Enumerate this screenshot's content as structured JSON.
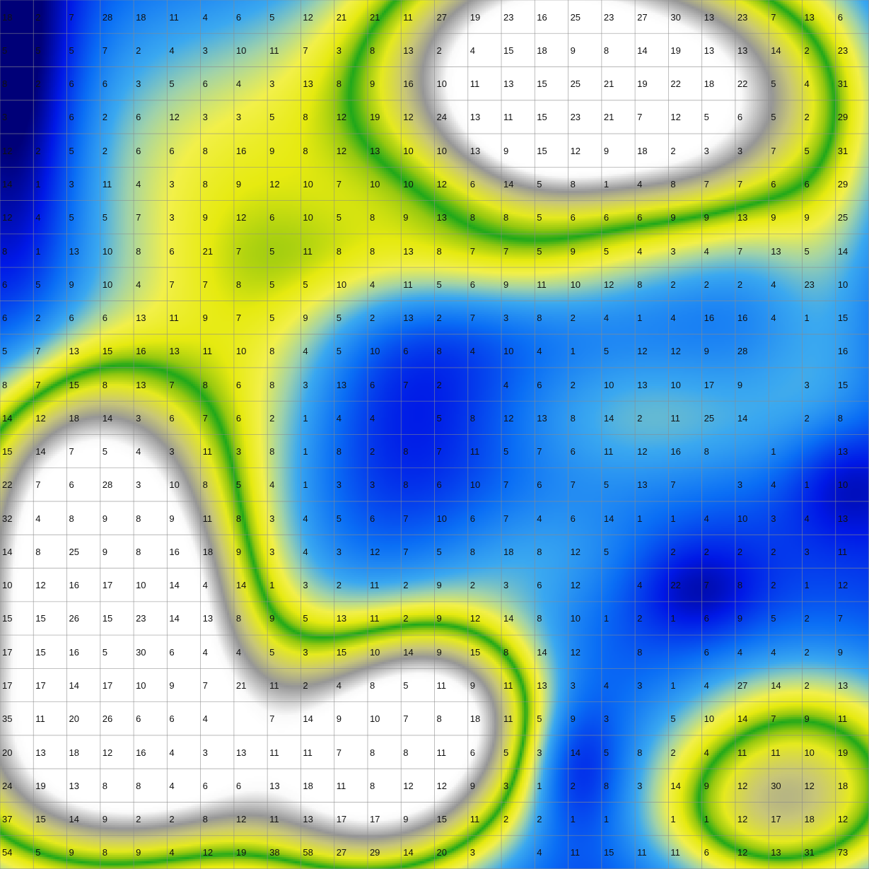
{
  "grid": {
    "rows": 26,
    "cols": 26,
    "values": [
      [
        "18",
        "2",
        "7",
        "28",
        "18",
        "11",
        "4",
        "6",
        "5",
        "12",
        "21",
        "21",
        "11",
        "27",
        "19",
        "23",
        "16",
        "25",
        "23",
        "27",
        "30",
        "13",
        "23",
        "7",
        "13",
        "6"
      ],
      [
        "5",
        "5",
        "5",
        "7",
        "2",
        "4",
        "3",
        "10",
        "11",
        "7",
        "3",
        "8",
        "13",
        "2",
        "4",
        "15",
        "18",
        "9",
        "8",
        "14",
        "19",
        "13",
        "13",
        "14",
        "2",
        "23"
      ],
      [
        "8",
        "2",
        "6",
        "6",
        "3",
        "5",
        "6",
        "4",
        "3",
        "13",
        "8",
        "9",
        "16",
        "10",
        "11",
        "13",
        "15",
        "25",
        "21",
        "19",
        "22",
        "18",
        "22",
        "5",
        "4",
        "31"
      ],
      [
        "3",
        "",
        "6",
        "2",
        "6",
        "12",
        "3",
        "3",
        "5",
        "8",
        "12",
        "19",
        "12",
        "24",
        "13",
        "11",
        "15",
        "23",
        "21",
        "7",
        "12",
        "5",
        "6",
        "5",
        "2",
        "29"
      ],
      [
        "12",
        "2",
        "5",
        "2",
        "6",
        "6",
        "8",
        "16",
        "9",
        "8",
        "12",
        "13",
        "10",
        "10",
        "13",
        "9",
        "15",
        "12",
        "9",
        "18",
        "2",
        "3",
        "3",
        "7",
        "5",
        "31"
      ],
      [
        "14",
        "1",
        "3",
        "11",
        "4",
        "3",
        "8",
        "9",
        "12",
        "10",
        "7",
        "10",
        "10",
        "12",
        "6",
        "14",
        "5",
        "8",
        "1",
        "4",
        "8",
        "7",
        "7",
        "6",
        "6",
        "29"
      ],
      [
        "12",
        "4",
        "5",
        "5",
        "7",
        "3",
        "9",
        "12",
        "6",
        "10",
        "5",
        "8",
        "9",
        "13",
        "8",
        "8",
        "5",
        "6",
        "6",
        "6",
        "9",
        "9",
        "13",
        "9",
        "9",
        "25"
      ],
      [
        "8",
        "1",
        "13",
        "10",
        "8",
        "6",
        "21",
        "7",
        "5",
        "11",
        "8",
        "8",
        "13",
        "8",
        "7",
        "7",
        "5",
        "9",
        "5",
        "4",
        "3",
        "4",
        "7",
        "13",
        "5",
        "14"
      ],
      [
        "6",
        "5",
        "9",
        "10",
        "4",
        "7",
        "7",
        "8",
        "5",
        "5",
        "10",
        "4",
        "11",
        "5",
        "6",
        "9",
        "11",
        "10",
        "12",
        "8",
        "2",
        "2",
        "2",
        "4",
        "23",
        "10"
      ],
      [
        "6",
        "2",
        "6",
        "6",
        "13",
        "11",
        "9",
        "7",
        "5",
        "9",
        "5",
        "2",
        "13",
        "2",
        "7",
        "3",
        "8",
        "2",
        "4",
        "1",
        "4",
        "16",
        "16",
        "4",
        "1",
        "15"
      ],
      [
        "5",
        "7",
        "13",
        "15",
        "16",
        "13",
        "11",
        "10",
        "8",
        "4",
        "5",
        "10",
        "6",
        "8",
        "4",
        "10",
        "4",
        "1",
        "5",
        "12",
        "12",
        "9",
        "28",
        "",
        "",
        "16"
      ],
      [
        "8",
        "7",
        "15",
        "8",
        "13",
        "7",
        "8",
        "6",
        "8",
        "3",
        "13",
        "6",
        "7",
        "2",
        "",
        "4",
        "6",
        "2",
        "10",
        "13",
        "10",
        "17",
        "9",
        "",
        "3",
        "15"
      ],
      [
        "14",
        "12",
        "18",
        "14",
        "3",
        "6",
        "7",
        "6",
        "2",
        "1",
        "4",
        "4",
        "",
        "5",
        "8",
        "12",
        "13",
        "8",
        "14",
        "2",
        "11",
        "25",
        "14",
        "",
        "2",
        "8"
      ],
      [
        "15",
        "14",
        "7",
        "5",
        "4",
        "3",
        "11",
        "3",
        "8",
        "1",
        "8",
        "2",
        "8",
        "7",
        "11",
        "5",
        "7",
        "6",
        "11",
        "12",
        "16",
        "8",
        "",
        "1",
        "",
        "13"
      ],
      [
        "22",
        "7",
        "6",
        "28",
        "3",
        "10",
        "8",
        "5",
        "4",
        "1",
        "3",
        "3",
        "8",
        "6",
        "10",
        "7",
        "6",
        "7",
        "5",
        "13",
        "7",
        "",
        "3",
        "4",
        "1",
        "10"
      ],
      [
        "32",
        "4",
        "8",
        "9",
        "8",
        "9",
        "11",
        "8",
        "3",
        "4",
        "5",
        "6",
        "7",
        "10",
        "6",
        "7",
        "4",
        "6",
        "14",
        "1",
        "1",
        "4",
        "10",
        "3",
        "4",
        "13"
      ],
      [
        "14",
        "8",
        "25",
        "9",
        "8",
        "16",
        "18",
        "9",
        "3",
        "4",
        "3",
        "12",
        "7",
        "5",
        "8",
        "18",
        "8",
        "12",
        "5",
        "",
        "2",
        "2",
        "2",
        "2",
        "3",
        "11"
      ],
      [
        "10",
        "12",
        "16",
        "17",
        "10",
        "14",
        "4",
        "14",
        "1",
        "3",
        "2",
        "11",
        "2",
        "9",
        "2",
        "3",
        "6",
        "12",
        "",
        "4",
        "22",
        "7",
        "8",
        "2",
        "1",
        "12"
      ],
      [
        "15",
        "15",
        "26",
        "15",
        "23",
        "14",
        "13",
        "8",
        "9",
        "5",
        "13",
        "11",
        "2",
        "9",
        "12",
        "14",
        "8",
        "10",
        "1",
        "2",
        "1",
        "6",
        "9",
        "5",
        "2",
        "7"
      ],
      [
        "17",
        "15",
        "16",
        "5",
        "30",
        "6",
        "4",
        "4",
        "5",
        "3",
        "15",
        "10",
        "14",
        "9",
        "15",
        "8",
        "14",
        "12",
        "",
        "8",
        "",
        "6",
        "4",
        "4",
        "2",
        "9"
      ],
      [
        "17",
        "17",
        "14",
        "17",
        "10",
        "9",
        "7",
        "21",
        "11",
        "2",
        "4",
        "8",
        "5",
        "11",
        "9",
        "11",
        "13",
        "3",
        "4",
        "3",
        "1",
        "4",
        "27",
        "14",
        "2",
        "13"
      ],
      [
        "35",
        "11",
        "20",
        "26",
        "6",
        "6",
        "4",
        "",
        "7",
        "14",
        "9",
        "10",
        "7",
        "8",
        "18",
        "11",
        "5",
        "9",
        "3",
        "",
        "5",
        "10",
        "14",
        "7",
        "9",
        "11"
      ],
      [
        "20",
        "13",
        "18",
        "12",
        "16",
        "4",
        "3",
        "13",
        "11",
        "11",
        "7",
        "8",
        "8",
        "11",
        "6",
        "5",
        "3",
        "14",
        "5",
        "8",
        "2",
        "4",
        "11",
        "11",
        "10",
        "19"
      ],
      [
        "24",
        "19",
        "13",
        "8",
        "8",
        "4",
        "6",
        "6",
        "13",
        "18",
        "11",
        "8",
        "12",
        "12",
        "9",
        "3",
        "1",
        "2",
        "8",
        "3",
        "14",
        "9",
        "12",
        "30",
        "12",
        "18"
      ],
      [
        "37",
        "15",
        "14",
        "9",
        "2",
        "2",
        "8",
        "12",
        "11",
        "13",
        "17",
        "17",
        "9",
        "15",
        "11",
        "2",
        "2",
        "1",
        "1",
        "",
        "1",
        "1",
        "12",
        "17",
        "18",
        "12"
      ],
      [
        "54",
        "5",
        "9",
        "8",
        "9",
        "4",
        "12",
        "19",
        "38",
        "58",
        "27",
        "29",
        "14",
        "20",
        "3",
        "",
        "4",
        "11",
        "15",
        "11",
        "11",
        "6",
        "12",
        "13",
        "31",
        "73"
      ]
    ]
  },
  "palette": {
    "grid_line": "#8c8c8c",
    "label_color": "#111111",
    "ramp": [
      "#00007a",
      "#0018e6",
      "#0a6ef5",
      "#3aa8f0",
      "#a9d6a0",
      "#f2f04a",
      "#e6ea10",
      "#9bcc10",
      "#1fa81a",
      "#f2f04a",
      "#d9d68a",
      "#9a9a9a",
      "#ffffff"
    ]
  }
}
